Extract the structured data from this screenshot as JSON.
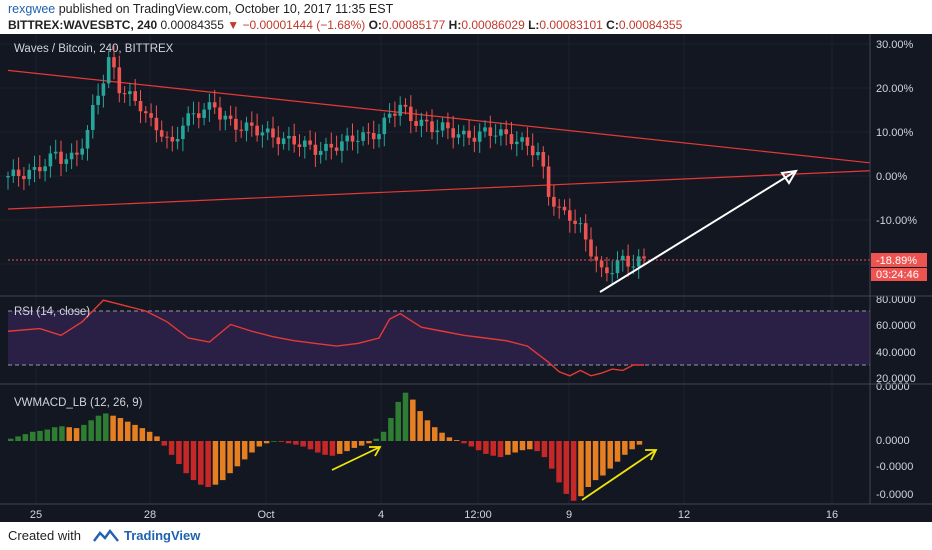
{
  "header": {
    "author": "rexgwee",
    "published_text": "published on TradingView.com, October 10, 2017 11:35 EST",
    "symbol": "BITTREX:WAVESBTC, 240",
    "last_price": "0.00084355",
    "change_arrow": "▼",
    "change": "−0.00001444 (−1.68%)",
    "open_label": "O:",
    "open": "0.00085177",
    "high_label": "H:",
    "high": "0.00086029",
    "low_label": "L:",
    "low": "0.00083101",
    "close_label": "C:",
    "close": "0.00084355"
  },
  "price_pane": {
    "title": "Waves / Bitcoin, 240, BITTREX",
    "y_ticks": [
      "30.00%",
      "20.00%",
      "10.00%",
      "0.00%",
      "-10.00%"
    ],
    "last_label": "-18.89%",
    "countdown": "03:24:46"
  },
  "rsi_pane": {
    "title": "RSI (14, close)",
    "y_ticks": [
      "80.0000",
      "60.0000",
      "40.0000",
      "20.0000"
    ]
  },
  "macd_pane": {
    "title": "VWMACD_LB (12, 26, 9)",
    "y_ticks": [
      "0.0000",
      "0.0000",
      "-0.0000",
      "-0.0000"
    ]
  },
  "x_axis": {
    "ticks": [
      "25",
      "28",
      "Oct",
      "4",
      "12:00",
      "9",
      "12",
      "16"
    ]
  },
  "footer": {
    "created_with": "Created with",
    "brand": "TradingView"
  },
  "colors": {
    "background": "#131722",
    "up": "#26a69a",
    "down": "#ef5350",
    "trendline": "#e53935",
    "rsi_line": "#e53935",
    "rsi_band": "#2a1f45",
    "hist_up_strong": "#2e7d32",
    "hist_up_weak": "#e67e22",
    "hist_down_strong": "#c62828",
    "hist_down_weak": "#e67e22",
    "arrow_white": "#ffffff",
    "arrow_yellow": "#f1e60a"
  },
  "chart_data": [
    {
      "type": "candlestick",
      "title": "Waves / Bitcoin, 240, BITTREX",
      "y_unit": "percent change",
      "ylim": [
        -30,
        32
      ],
      "x_ticks": [
        "25",
        "28",
        "Oct",
        "4",
        "12:00",
        "9",
        "12",
        "16"
      ],
      "close_path": [
        [
          0,
          0
        ],
        [
          3,
          0.5
        ],
        [
          5,
          1
        ],
        [
          7,
          3
        ],
        [
          9,
          5
        ],
        [
          10,
          4
        ],
        [
          12,
          4
        ],
        [
          13,
          5
        ],
        [
          15,
          10
        ],
        [
          16,
          15
        ],
        [
          17,
          19
        ],
        [
          18,
          22
        ],
        [
          19,
          26
        ],
        [
          20,
          24
        ],
        [
          21,
          20
        ],
        [
          23,
          18
        ],
        [
          25,
          16
        ],
        [
          27,
          12
        ],
        [
          29,
          10
        ],
        [
          30,
          8
        ],
        [
          31,
          7
        ],
        [
          33,
          12
        ],
        [
          35,
          14
        ],
        [
          37,
          15
        ],
        [
          39,
          16
        ],
        [
          40,
          14
        ],
        [
          42,
          12
        ],
        [
          44,
          11
        ],
        [
          46,
          11
        ],
        [
          48,
          10
        ],
        [
          50,
          9
        ],
        [
          52,
          8
        ],
        [
          54,
          8
        ],
        [
          56,
          7
        ],
        [
          58,
          6
        ],
        [
          60,
          6
        ],
        [
          62,
          7
        ],
        [
          64,
          8
        ],
        [
          66,
          9
        ],
        [
          68,
          9
        ],
        [
          70,
          10
        ],
        [
          72,
          14
        ],
        [
          74,
          16
        ],
        [
          76,
          13
        ],
        [
          78,
          12
        ],
        [
          80,
          11
        ],
        [
          82,
          11
        ],
        [
          84,
          10
        ],
        [
          86,
          9
        ],
        [
          88,
          9
        ],
        [
          90,
          10
        ],
        [
          92,
          10
        ],
        [
          94,
          9
        ],
        [
          96,
          8
        ],
        [
          98,
          7
        ],
        [
          100,
          5
        ],
        [
          101,
          1
        ],
        [
          102,
          -4
        ],
        [
          104,
          -8
        ],
        [
          106,
          -9
        ],
        [
          108,
          -12
        ],
        [
          110,
          -17
        ],
        [
          112,
          -22
        ],
        [
          114,
          -21
        ],
        [
          116,
          -19
        ],
        [
          118,
          -20
        ],
        [
          120,
          -19
        ]
      ],
      "trendlines": [
        {
          "from": [
            0,
            24
          ],
          "to": [
            190,
            3
          ]
        },
        {
          "from": [
            0,
            -7.5
          ],
          "to": [
            190,
            1.2
          ]
        }
      ],
      "last_value": -18.89
    },
    {
      "type": "line",
      "title": "RSI (14, close)",
      "ylim": [
        10,
        82
      ],
      "levels": [
        70,
        30
      ],
      "values": [
        [
          0,
          55
        ],
        [
          6,
          57
        ],
        [
          10,
          52
        ],
        [
          14,
          62
        ],
        [
          18,
          78
        ],
        [
          22,
          74
        ],
        [
          26,
          70
        ],
        [
          30,
          62
        ],
        [
          34,
          50
        ],
        [
          38,
          47
        ],
        [
          42,
          60
        ],
        [
          46,
          55
        ],
        [
          50,
          51
        ],
        [
          54,
          48
        ],
        [
          58,
          46
        ],
        [
          62,
          44
        ],
        [
          66,
          46
        ],
        [
          70,
          50
        ],
        [
          72,
          64
        ],
        [
          74,
          68
        ],
        [
          78,
          58
        ],
        [
          82,
          55
        ],
        [
          86,
          52
        ],
        [
          90,
          50
        ],
        [
          94,
          48
        ],
        [
          98,
          44
        ],
        [
          100,
          38
        ],
        [
          102,
          32
        ],
        [
          104,
          25
        ],
        [
          106,
          22
        ],
        [
          108,
          26
        ],
        [
          110,
          22
        ],
        [
          112,
          24
        ],
        [
          114,
          27
        ],
        [
          116,
          26
        ],
        [
          118,
          30
        ],
        [
          120,
          30
        ]
      ]
    },
    {
      "type": "bar",
      "title": "VWMACD_LB (12, 26, 9)",
      "ylim": [
        -1.5,
        1.2
      ],
      "values": [
        0.05,
        0.1,
        0.15,
        0.2,
        0.22,
        0.25,
        0.3,
        0.32,
        0.3,
        0.28,
        0.35,
        0.45,
        0.55,
        0.6,
        0.55,
        0.5,
        0.42,
        0.35,
        0.28,
        0.2,
        0.1,
        -0.1,
        -0.3,
        -0.5,
        -0.7,
        -0.85,
        -0.95,
        -1.0,
        -0.95,
        -0.85,
        -0.7,
        -0.55,
        -0.4,
        -0.25,
        -0.12,
        -0.05,
        0.0,
        -0.02,
        -0.05,
        -0.08,
        -0.12,
        -0.18,
        -0.25,
        -0.3,
        -0.32,
        -0.28,
        -0.22,
        -0.15,
        -0.1,
        -0.05,
        0.05,
        0.2,
        0.5,
        0.85,
        1.05,
        0.9,
        0.65,
        0.45,
        0.3,
        0.18,
        0.08,
        0.02,
        -0.05,
        -0.12,
        -0.2,
        -0.28,
        -0.32,
        -0.35,
        -0.3,
        -0.25,
        -0.2,
        -0.18,
        -0.22,
        -0.35,
        -0.6,
        -0.9,
        -1.15,
        -1.3,
        -1.2,
        -1.0,
        -0.85,
        -0.75,
        -0.6,
        -0.45,
        -0.3,
        -0.18,
        -0.08
      ]
    }
  ]
}
